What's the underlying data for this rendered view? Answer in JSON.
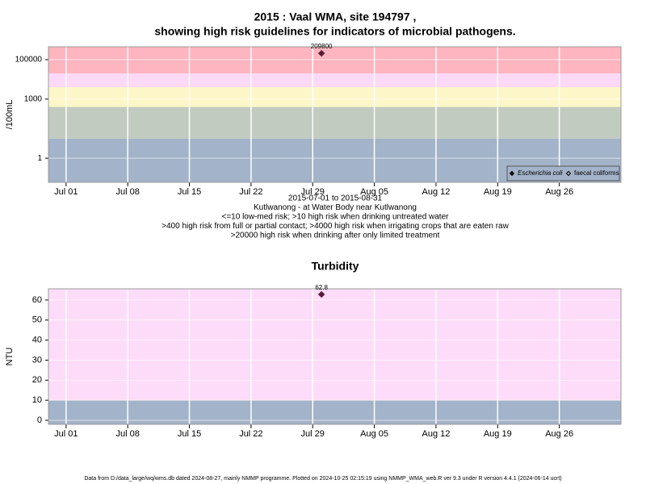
{
  "chart_data": [
    {
      "type": "scatter",
      "title": [
        "2015 : Vaal WMA, site 194797 ,",
        "showing high risk guidelines for indicators of microbial pathogens."
      ],
      "y_label": "/100mL",
      "log_y": true,
      "ylim": [
        0.06,
        450000
      ],
      "yticks": [
        1,
        1000,
        100000
      ],
      "xlim": [
        "2015-06-29",
        "2015-09-02"
      ],
      "xticks": [
        {
          "value": "2015-07-01",
          "label": "Jul 01"
        },
        {
          "value": "2015-07-08",
          "label": "Jul 08"
        },
        {
          "value": "2015-07-15",
          "label": "Jul 15"
        },
        {
          "value": "2015-07-22",
          "label": "Jul 22"
        },
        {
          "value": "2015-07-29",
          "label": "Jul 29"
        },
        {
          "value": "2015-08-05",
          "label": "Aug 05"
        },
        {
          "value": "2015-08-12",
          "label": "Aug 12"
        },
        {
          "value": "2015-08-19",
          "label": "Aug 19"
        },
        {
          "value": "2015-08-26",
          "label": "Aug 26"
        }
      ],
      "grid": true,
      "bands": [
        {
          "from": 0.06,
          "to": 10,
          "color": "#a3b3c9"
        },
        {
          "from": 10,
          "to": 400,
          "color": "#c2cbbf"
        },
        {
          "from": 400,
          "to": 4000,
          "color": "#fdf6c8"
        },
        {
          "from": 4000,
          "to": 20000,
          "color": "#fcd9f6"
        },
        {
          "from": 20000,
          "to": 450000,
          "color": "#ffb5c0"
        }
      ],
      "x": [
        "2015-07-30"
      ],
      "series": [
        {
          "name": "Escherichia coli",
          "color": "#5a1a3a",
          "filled": true,
          "values": [
            209800
          ]
        },
        {
          "name": "faecal coliforms",
          "color": "#333333",
          "filled": false,
          "values": [
            null
          ]
        }
      ],
      "legend": "bottom right",
      "notes": [
        "2015-07-01 to 2015-08-31",
        "Kutlwanong - at Water Body near Kutlwanong",
        "<=10 low-med risk; >10 high risk when drinking untreated water",
        ">400 high risk from full or partial contact; >4000 high risk when irrigating crops that are eaten raw",
        ">20000 high risk when drinking after only limited treatment"
      ]
    },
    {
      "type": "scatter",
      "title": [
        "Turbidity"
      ],
      "y_label": "NTU",
      "log_y": false,
      "ylim": [
        -2,
        65.6
      ],
      "yticks": [
        0,
        10,
        20,
        30,
        40,
        50,
        60
      ],
      "xlim": [
        "2015-06-29",
        "2015-09-02"
      ],
      "xticks": [
        {
          "value": "2015-07-01",
          "label": "Jul 01"
        },
        {
          "value": "2015-07-08",
          "label": "Jul 08"
        },
        {
          "value": "2015-07-15",
          "label": "Jul 15"
        },
        {
          "value": "2015-07-22",
          "label": "Jul 22"
        },
        {
          "value": "2015-07-29",
          "label": "Jul 29"
        },
        {
          "value": "2015-08-05",
          "label": "Aug 05"
        },
        {
          "value": "2015-08-12",
          "label": "Aug 12"
        },
        {
          "value": "2015-08-19",
          "label": "Aug 19"
        },
        {
          "value": "2015-08-26",
          "label": "Aug 26"
        }
      ],
      "grid": true,
      "bands": [
        {
          "from": -2,
          "to": 10,
          "color": "#a3b3c9"
        },
        {
          "from": 10,
          "to": 65.6,
          "color": "#fddcf9"
        }
      ],
      "x": [
        "2015-07-30"
      ],
      "series": [
        {
          "name": "Turbidity",
          "color": "#5a1a3a",
          "filled": true,
          "values": [
            62.8
          ]
        }
      ]
    }
  ],
  "footer": "Data from D:/data_large/wq/wms.db dated 2024-08-27, mainly NMMP programme. Plotted on 2024-10-25 02:15:19 using NMMP_WMA_web.R ver 9.3 under R version 4.4.1 (2024-06-14 ucrt)"
}
